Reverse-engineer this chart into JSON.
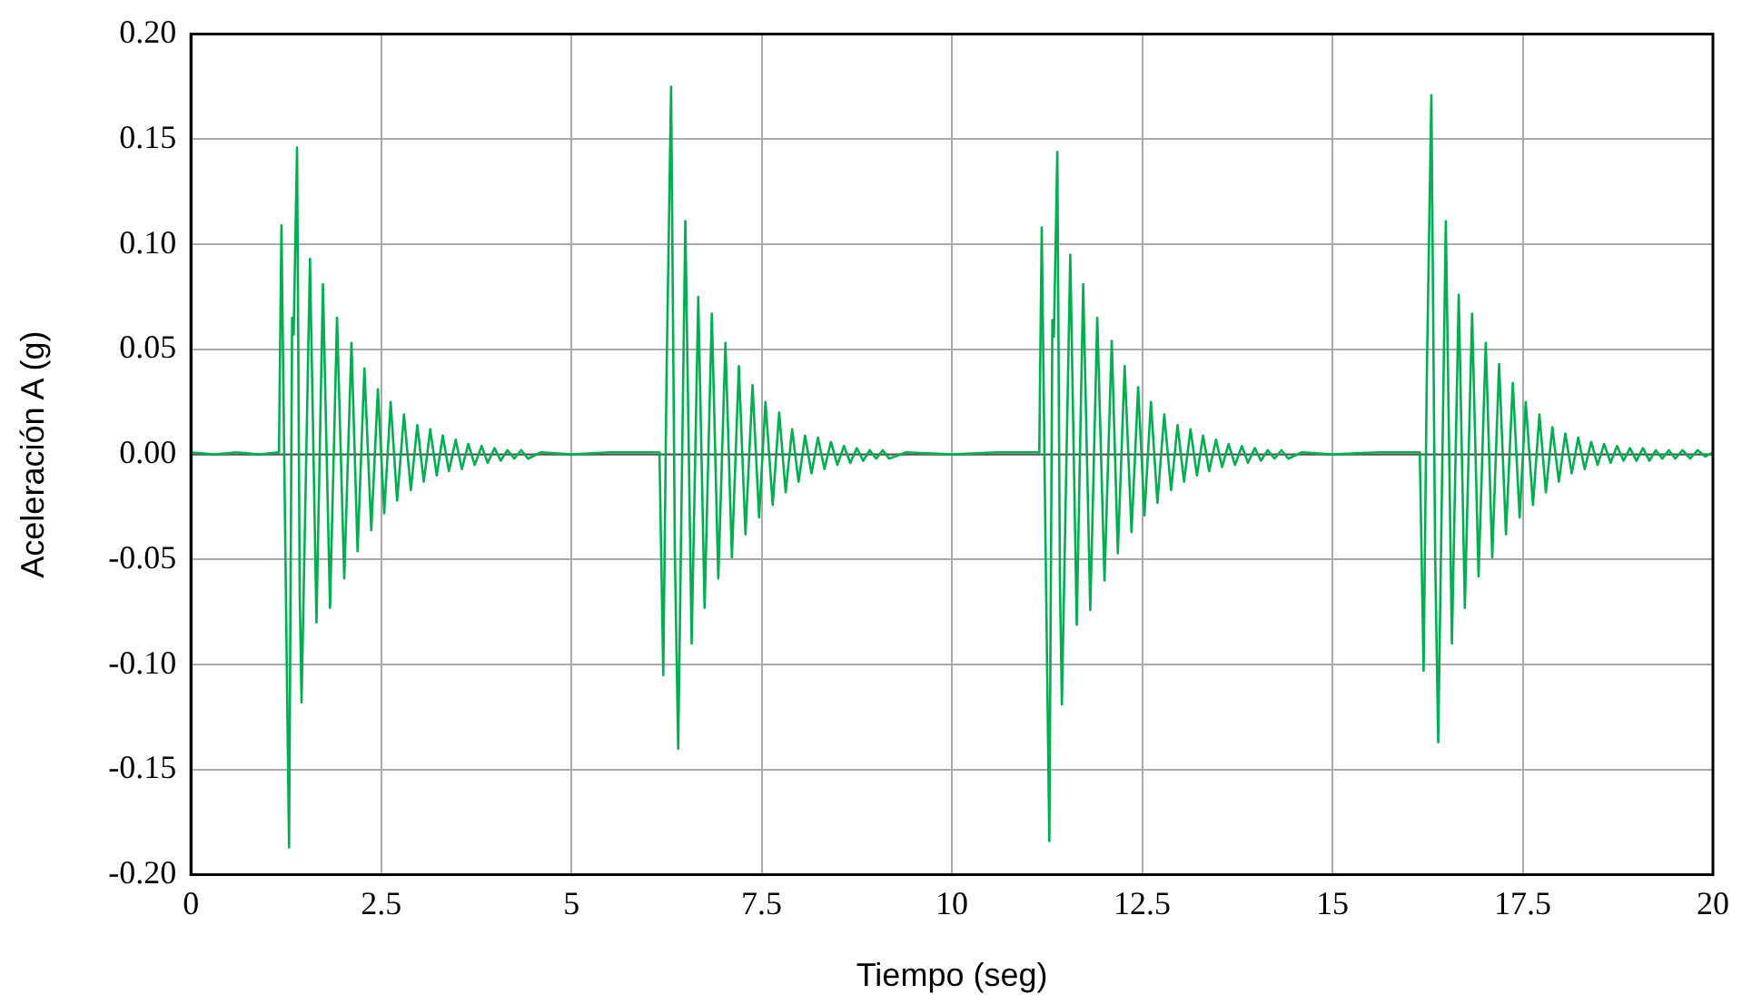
{
  "chart_data": {
    "type": "line",
    "xlabel": "Tiempo (seg)",
    "ylabel": "Aceleración A (g)",
    "xlim": [
      0,
      20
    ],
    "xticks": [
      0,
      2.5,
      5,
      7.5,
      10,
      12.5,
      15,
      17.5,
      20
    ],
    "ylim": [
      -0.2,
      0.2
    ],
    "yticks": [
      {
        "value": -0.2,
        "label": "-0.20"
      },
      {
        "value": -0.15,
        "label": "-0.15"
      },
      {
        "value": -0.1,
        "label": "-0.10"
      },
      {
        "value": -0.05,
        "label": "-0.05"
      },
      {
        "value": 0,
        "label": "0.00"
      },
      {
        "value": 0.05,
        "label": "0.05"
      },
      {
        "value": 0.1,
        "label": "0.10"
      },
      {
        "value": 0.15,
        "label": "0.15"
      },
      {
        "value": 0.2,
        "label": "0.20"
      }
    ],
    "grid": true,
    "legend": false,
    "marker": "none",
    "line_style": "solid",
    "x": [
      0,
      0.3,
      0.6,
      0.9,
      1.157,
      1.19,
      1.24,
      1.29,
      1.33,
      1.35,
      1.395,
      1.43,
      1.454,
      1.565,
      1.65,
      1.735,
      1.828,
      1.92,
      2.015,
      2.11,
      2.19,
      2.28,
      2.37,
      2.457,
      2.54,
      2.625,
      2.71,
      2.8,
      2.89,
      2.975,
      3.06,
      3.145,
      3.23,
      3.31,
      3.39,
      3.48,
      3.56,
      3.645,
      3.73,
      3.82,
      3.9,
      3.99,
      4.07,
      4.16,
      4.25,
      4.34,
      4.43,
      4.6,
      5.0,
      5.5,
      6.157,
      6.207,
      6.25,
      6.31,
      6.36,
      6.403,
      6.497,
      6.58,
      6.667,
      6.75,
      6.845,
      6.93,
      7.024,
      7.109,
      7.2,
      7.287,
      7.38,
      7.466,
      7.55,
      7.645,
      7.73,
      7.815,
      7.9,
      7.985,
      8.07,
      8.155,
      8.24,
      8.325,
      8.41,
      8.495,
      8.58,
      8.665,
      8.75,
      8.835,
      8.92,
      9.005,
      9.09,
      9.175,
      9.4,
      10.0,
      10.6,
      11.148,
      11.18,
      11.23,
      11.28,
      11.32,
      11.34,
      11.385,
      11.42,
      11.445,
      11.555,
      11.64,
      11.725,
      11.818,
      11.91,
      12.005,
      12.1,
      12.18,
      12.27,
      12.36,
      12.447,
      12.53,
      12.615,
      12.7,
      12.79,
      12.88,
      12.965,
      13.05,
      13.135,
      13.22,
      13.3,
      13.38,
      13.47,
      13.55,
      13.635,
      13.72,
      13.81,
      13.89,
      13.98,
      14.06,
      14.15,
      14.24,
      14.33,
      14.42,
      14.6,
      15.0,
      15.6,
      16.148,
      16.198,
      16.24,
      16.3,
      16.35,
      16.39,
      16.49,
      16.57,
      16.66,
      16.74,
      16.835,
      16.92,
      17.015,
      17.1,
      17.19,
      17.28,
      17.37,
      17.46,
      17.54,
      17.635,
      17.72,
      17.805,
      17.89,
      17.975,
      18.06,
      18.145,
      18.23,
      18.315,
      18.4,
      18.485,
      18.57,
      18.655,
      18.74,
      18.825,
      18.91,
      18.995,
      19.08,
      19.165,
      19.25,
      19.335,
      19.42,
      19.505,
      19.6,
      19.7,
      19.8,
      19.9,
      20
    ],
    "series": [
      {
        "color": "#00b050",
        "values": [
          0.001,
          0,
          0.001,
          0,
          0.001,
          0.109,
          -0.042,
          -0.187,
          0.065,
          0.057,
          0.146,
          -0.066,
          -0.118,
          0.093,
          -0.08,
          0.081,
          -0.073,
          0.065,
          -0.059,
          0.053,
          -0.046,
          0.041,
          -0.036,
          0.031,
          -0.028,
          0.025,
          -0.022,
          0.019,
          -0.017,
          0.014,
          -0.013,
          0.012,
          -0.01,
          0.009,
          -0.008,
          0.007,
          -0.007,
          0.005,
          -0.005,
          0.004,
          -0.004,
          0.003,
          -0.003,
          0.002,
          -0.002,
          0.002,
          -0.002,
          0.001,
          0,
          0.001,
          0.001,
          -0.105,
          0.037,
          0.175,
          -0.048,
          -0.14,
          0.111,
          -0.09,
          0.075,
          -0.073,
          0.067,
          -0.059,
          0.053,
          -0.049,
          0.042,
          -0.038,
          0.033,
          -0.03,
          0.025,
          -0.024,
          0.02,
          -0.018,
          0.012,
          -0.013,
          0.009,
          -0.009,
          0.008,
          -0.007,
          0.006,
          -0.005,
          0.004,
          -0.004,
          0.003,
          -0.003,
          0.002,
          -0.002,
          0.002,
          -0.002,
          0.001,
          0,
          0.001,
          0.001,
          0.108,
          -0.042,
          -0.184,
          0.064,
          0.056,
          0.144,
          -0.062,
          -0.119,
          0.095,
          -0.081,
          0.081,
          -0.074,
          0.065,
          -0.06,
          0.054,
          -0.047,
          0.042,
          -0.037,
          0.032,
          -0.029,
          0.025,
          -0.023,
          0.019,
          -0.017,
          0.014,
          -0.013,
          0.012,
          -0.01,
          0.009,
          -0.008,
          0.007,
          -0.006,
          0.005,
          -0.005,
          0.004,
          -0.004,
          0.003,
          -0.003,
          0.002,
          -0.002,
          0.002,
          -0.002,
          0.001,
          0,
          0.001,
          0.001,
          -0.103,
          0.037,
          0.171,
          -0.048,
          -0.137,
          0.111,
          -0.09,
          0.076,
          -0.073,
          0.067,
          -0.058,
          0.053,
          -0.049,
          0.043,
          -0.038,
          0.034,
          -0.03,
          0.025,
          -0.024,
          0.019,
          -0.018,
          0.013,
          -0.013,
          0.01,
          -0.009,
          0.008,
          -0.007,
          0.006,
          -0.005,
          0.005,
          -0.004,
          0.004,
          -0.003,
          0.003,
          -0.003,
          0.003,
          -0.003,
          0.002,
          -0.002,
          0.002,
          -0.002,
          0.002,
          -0.002,
          0.002,
          -0.001,
          0.001
        ]
      }
    ]
  }
}
